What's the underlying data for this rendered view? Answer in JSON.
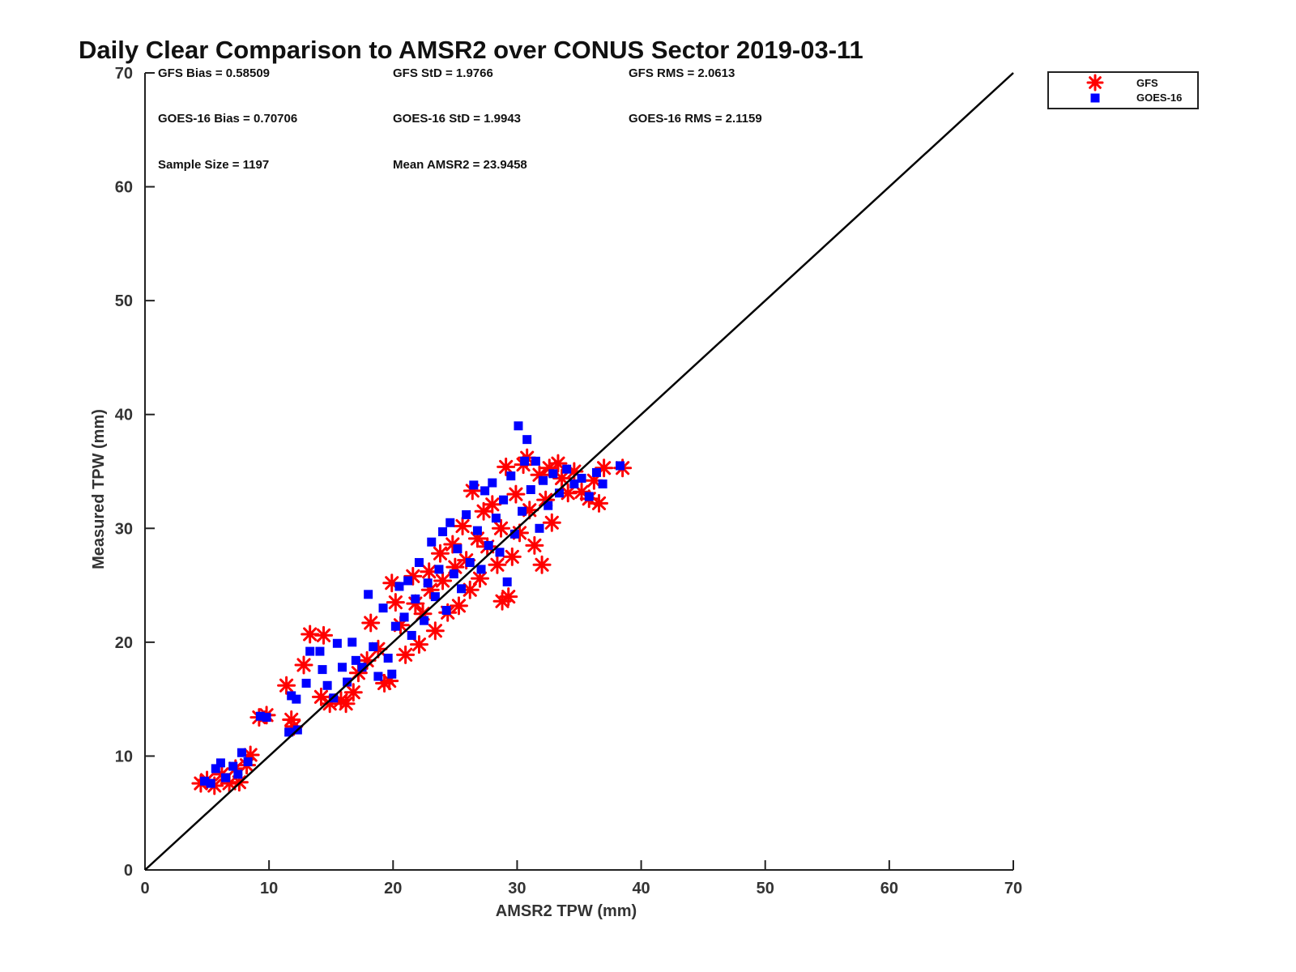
{
  "chart_data": {
    "type": "scatter",
    "title": "Daily Clear Comparison to AMSR2 over CONUS Sector 2019-03-11",
    "xlabel": "AMSR2 TPW (mm)",
    "ylabel": "Measured TPW (mm)",
    "xlim": [
      0,
      70
    ],
    "ylim": [
      0,
      70
    ],
    "xticks": [
      "0",
      "10",
      "20",
      "30",
      "40",
      "50",
      "60",
      "70"
    ],
    "yticks": [
      "0",
      "10",
      "20",
      "30",
      "40",
      "50",
      "60",
      "70"
    ],
    "grid": false,
    "legend_position": "top-right outside",
    "reference_line": {
      "from": [
        0,
        0
      ],
      "to": [
        70,
        70
      ],
      "color": "#000000"
    },
    "stats": {
      "gfs_bias": "GFS Bias = 0.58509",
      "gfs_std": "GFS StD = 1.9766",
      "gfs_rms": "GFS RMS = 2.0613",
      "goes_bias": "GOES-16 Bias = 0.70706",
      "goes_std": "GOES-16 StD = 1.9943",
      "goes_rms": "GOES-16 RMS = 2.1159",
      "sample_size": "Sample Size = 1197",
      "mean_amsr2": "Mean AMSR2 = 23.9458"
    },
    "series": [
      {
        "name": "GFS",
        "marker": "asterisk",
        "color": "#ff0000",
        "points": [
          [
            4.5,
            7.6
          ],
          [
            5.0,
            7.9
          ],
          [
            5.6,
            7.4
          ],
          [
            6.2,
            8.4
          ],
          [
            6.8,
            7.6
          ],
          [
            7.3,
            8.9
          ],
          [
            7.6,
            7.7
          ],
          [
            8.5,
            10.1
          ],
          [
            8.2,
            9.2
          ],
          [
            9.2,
            13.4
          ],
          [
            9.8,
            13.6
          ],
          [
            11.4,
            16.2
          ],
          [
            11.8,
            13.2
          ],
          [
            12.0,
            12.6
          ],
          [
            12.8,
            18.0
          ],
          [
            13.3,
            20.7
          ],
          [
            14.4,
            20.6
          ],
          [
            14.2,
            15.2
          ],
          [
            14.9,
            14.6
          ],
          [
            15.8,
            14.9
          ],
          [
            16.2,
            14.6
          ],
          [
            16.8,
            15.6
          ],
          [
            17.2,
            17.3
          ],
          [
            17.9,
            18.4
          ],
          [
            18.2,
            21.7
          ],
          [
            18.8,
            19.4
          ],
          [
            19.3,
            16.4
          ],
          [
            19.7,
            16.6
          ],
          [
            19.9,
            25.2
          ],
          [
            20.2,
            23.5
          ],
          [
            20.6,
            21.5
          ],
          [
            21.0,
            18.9
          ],
          [
            21.6,
            25.8
          ],
          [
            21.8,
            23.4
          ],
          [
            22.1,
            19.8
          ],
          [
            22.4,
            22.5
          ],
          [
            22.9,
            26.2
          ],
          [
            23.0,
            24.6
          ],
          [
            23.4,
            21.0
          ],
          [
            23.8,
            27.8
          ],
          [
            24.0,
            25.4
          ],
          [
            24.4,
            22.6
          ],
          [
            24.8,
            28.6
          ],
          [
            25.0,
            26.6
          ],
          [
            25.3,
            23.2
          ],
          [
            25.6,
            30.2
          ],
          [
            25.9,
            27.2
          ],
          [
            26.2,
            24.6
          ],
          [
            26.4,
            33.3
          ],
          [
            26.8,
            29.1
          ],
          [
            27.0,
            25.6
          ],
          [
            27.3,
            31.5
          ],
          [
            27.6,
            28.4
          ],
          [
            28.0,
            32.1
          ],
          [
            28.4,
            26.8
          ],
          [
            28.7,
            30.0
          ],
          [
            28.8,
            23.6
          ],
          [
            29.1,
            35.4
          ],
          [
            29.3,
            24.0
          ],
          [
            29.6,
            27.5
          ],
          [
            29.9,
            33.0
          ],
          [
            30.2,
            29.6
          ],
          [
            30.5,
            35.6
          ],
          [
            30.8,
            36.2
          ],
          [
            31.0,
            31.6
          ],
          [
            31.4,
            28.5
          ],
          [
            31.8,
            34.7
          ],
          [
            32.0,
            26.8
          ],
          [
            32.3,
            32.5
          ],
          [
            32.6,
            35.3
          ],
          [
            32.8,
            30.5
          ],
          [
            33.3,
            35.7
          ],
          [
            33.6,
            34.4
          ],
          [
            34.1,
            33.1
          ],
          [
            34.6,
            35.0
          ],
          [
            35.2,
            33.2
          ],
          [
            35.8,
            32.6
          ],
          [
            36.2,
            34.2
          ],
          [
            36.6,
            32.2
          ],
          [
            37.0,
            35.3
          ],
          [
            38.5,
            35.3
          ]
        ]
      },
      {
        "name": "GOES-16",
        "marker": "square",
        "color": "#0000ff",
        "points": [
          [
            4.8,
            7.8
          ],
          [
            5.3,
            7.6
          ],
          [
            5.7,
            8.9
          ],
          [
            6.1,
            9.4
          ],
          [
            6.5,
            8.1
          ],
          [
            7.1,
            9.1
          ],
          [
            7.5,
            8.4
          ],
          [
            7.8,
            10.3
          ],
          [
            8.3,
            9.5
          ],
          [
            9.3,
            13.5
          ],
          [
            9.8,
            13.4
          ],
          [
            11.6,
            12.1
          ],
          [
            11.8,
            15.3
          ],
          [
            12.2,
            15.0
          ],
          [
            12.3,
            12.3
          ],
          [
            13.0,
            16.4
          ],
          [
            13.3,
            19.2
          ],
          [
            14.1,
            19.2
          ],
          [
            14.3,
            17.6
          ],
          [
            14.7,
            16.2
          ],
          [
            15.2,
            15.1
          ],
          [
            15.5,
            19.9
          ],
          [
            15.9,
            17.8
          ],
          [
            16.3,
            16.5
          ],
          [
            16.7,
            20.0
          ],
          [
            17.0,
            18.4
          ],
          [
            17.5,
            17.8
          ],
          [
            18.0,
            24.2
          ],
          [
            18.4,
            19.6
          ],
          [
            18.8,
            17.0
          ],
          [
            19.2,
            23.0
          ],
          [
            19.6,
            18.6
          ],
          [
            19.9,
            17.2
          ],
          [
            20.2,
            21.4
          ],
          [
            20.5,
            24.9
          ],
          [
            20.9,
            22.2
          ],
          [
            21.2,
            25.4
          ],
          [
            21.5,
            20.6
          ],
          [
            21.8,
            23.8
          ],
          [
            22.1,
            27.0
          ],
          [
            22.5,
            21.9
          ],
          [
            22.8,
            25.2
          ],
          [
            23.1,
            28.8
          ],
          [
            23.4,
            24.0
          ],
          [
            23.7,
            26.4
          ],
          [
            24.0,
            29.7
          ],
          [
            24.3,
            22.8
          ],
          [
            24.6,
            30.5
          ],
          [
            24.9,
            26.0
          ],
          [
            25.2,
            28.2
          ],
          [
            25.5,
            24.7
          ],
          [
            25.9,
            31.2
          ],
          [
            26.2,
            27.0
          ],
          [
            26.5,
            33.8
          ],
          [
            26.8,
            29.8
          ],
          [
            27.1,
            26.4
          ],
          [
            27.4,
            33.3
          ],
          [
            27.7,
            28.5
          ],
          [
            28.0,
            34.0
          ],
          [
            28.3,
            30.9
          ],
          [
            28.6,
            27.9
          ],
          [
            28.9,
            32.5
          ],
          [
            29.2,
            25.3
          ],
          [
            29.5,
            34.6
          ],
          [
            29.8,
            29.5
          ],
          [
            30.1,
            39.0
          ],
          [
            30.4,
            31.5
          ],
          [
            30.6,
            35.9
          ],
          [
            30.8,
            37.8
          ],
          [
            31.1,
            33.4
          ],
          [
            31.5,
            35.9
          ],
          [
            31.8,
            30.0
          ],
          [
            32.1,
            34.2
          ],
          [
            32.5,
            32.0
          ],
          [
            32.9,
            34.8
          ],
          [
            33.4,
            33.1
          ],
          [
            34.0,
            35.2
          ],
          [
            34.6,
            33.9
          ],
          [
            35.2,
            34.4
          ],
          [
            35.8,
            32.8
          ],
          [
            36.4,
            34.9
          ],
          [
            36.9,
            33.9
          ],
          [
            38.3,
            35.5
          ]
        ]
      }
    ]
  }
}
